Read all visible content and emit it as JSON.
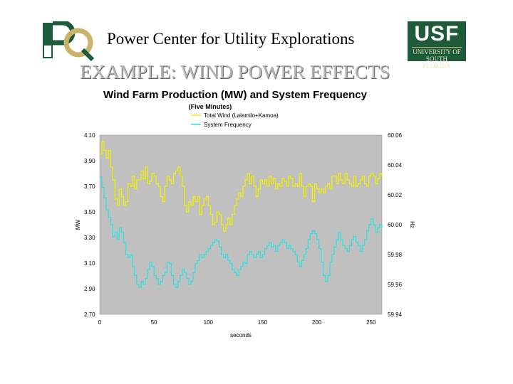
{
  "header": {
    "title": "Power Center for Utility Explorations",
    "logo_left": "PQ",
    "logo_right": "USF",
    "logo_right_sub": "UNIVERSITY OF SOUTH FLORIDA"
  },
  "slide": {
    "title": "EXAMPLE: WIND POWER EFFECTS"
  },
  "colors": {
    "wind": "#f0f000",
    "frequency": "#33e0e0",
    "plot_bg": "#c0c0c0",
    "usf_green": "#1e5b3a",
    "pq_green": "#1e5b3a"
  },
  "chart_data": {
    "type": "line",
    "title": "Wind Farm Production (MW) and System Frequency",
    "subtitle": "(Five Minutes)",
    "xlabel": "seconds",
    "ylabel": "MW",
    "y2label": "Hz",
    "xlim": [
      0,
      260
    ],
    "ylim": [
      2.7,
      4.1
    ],
    "y2lim": [
      59.94,
      60.06
    ],
    "x_ticks": [
      "0",
      "50",
      "100",
      "150",
      "200",
      "250"
    ],
    "y_ticks": [
      "4.10",
      "3.90",
      "3.70",
      "3.50",
      "3.30",
      "3.10",
      "2.90",
      "2.70"
    ],
    "y2_ticks": [
      "60.06",
      "60.04",
      "60.02",
      "60.00",
      "59.98",
      "59.96",
      "59.94"
    ],
    "legend_position": "top-center",
    "grid": false,
    "series": [
      {
        "name": "Total Wind (Lalamilo+Kamoa)",
        "axis": "left",
        "points": [
          [
            0,
            3.95
          ],
          [
            2,
            4.05
          ],
          [
            4,
            3.98
          ],
          [
            6,
            3.92
          ],
          [
            8,
            3.98
          ],
          [
            10,
            3.85
          ],
          [
            12,
            3.75
          ],
          [
            14,
            3.6
          ],
          [
            16,
            3.55
          ],
          [
            18,
            3.68
          ],
          [
            20,
            3.62
          ],
          [
            22,
            3.55
          ],
          [
            24,
            3.58
          ],
          [
            26,
            3.72
          ],
          [
            28,
            3.7
          ],
          [
            30,
            3.78
          ],
          [
            32,
            3.68
          ],
          [
            34,
            3.75
          ],
          [
            36,
            3.75
          ],
          [
            38,
            3.82
          ],
          [
            40,
            3.76
          ],
          [
            42,
            3.85
          ],
          [
            44,
            3.72
          ],
          [
            46,
            3.74
          ],
          [
            48,
            3.8
          ],
          [
            50,
            3.78
          ],
          [
            52,
            3.72
          ],
          [
            54,
            3.7
          ],
          [
            56,
            3.62
          ],
          [
            58,
            3.58
          ],
          [
            60,
            3.7
          ],
          [
            62,
            3.78
          ],
          [
            64,
            3.75
          ],
          [
            66,
            3.72
          ],
          [
            68,
            3.8
          ],
          [
            70,
            3.82
          ],
          [
            72,
            3.85
          ],
          [
            74,
            3.78
          ],
          [
            76,
            3.7
          ],
          [
            78,
            3.55
          ],
          [
            80,
            3.5
          ],
          [
            82,
            3.58
          ],
          [
            84,
            3.55
          ],
          [
            86,
            3.62
          ],
          [
            88,
            3.58
          ],
          [
            90,
            3.62
          ],
          [
            92,
            3.48
          ],
          [
            94,
            3.55
          ],
          [
            96,
            3.6
          ],
          [
            98,
            3.62
          ],
          [
            100,
            3.55
          ],
          [
            102,
            3.48
          ],
          [
            104,
            3.4
          ],
          [
            106,
            3.42
          ],
          [
            108,
            3.5
          ],
          [
            110,
            3.48
          ],
          [
            112,
            3.4
          ],
          [
            114,
            3.35
          ],
          [
            116,
            3.4
          ],
          [
            118,
            3.45
          ],
          [
            120,
            3.4
          ],
          [
            122,
            3.48
          ],
          [
            124,
            3.55
          ],
          [
            126,
            3.6
          ],
          [
            128,
            3.65
          ],
          [
            130,
            3.62
          ],
          [
            132,
            3.7
          ],
          [
            134,
            3.75
          ],
          [
            136,
            3.8
          ],
          [
            138,
            3.72
          ],
          [
            140,
            3.78
          ],
          [
            142,
            3.7
          ],
          [
            144,
            3.62
          ],
          [
            146,
            3.68
          ],
          [
            148,
            3.75
          ],
          [
            150,
            3.72
          ],
          [
            152,
            3.75
          ],
          [
            154,
            3.7
          ],
          [
            156,
            3.78
          ],
          [
            158,
            3.72
          ],
          [
            160,
            3.76
          ],
          [
            162,
            3.68
          ],
          [
            164,
            3.72
          ],
          [
            166,
            3.7
          ],
          [
            168,
            3.76
          ],
          [
            170,
            3.74
          ],
          [
            172,
            3.7
          ],
          [
            174,
            3.78
          ],
          [
            176,
            3.76
          ],
          [
            178,
            3.7
          ],
          [
            180,
            3.72
          ],
          [
            182,
            3.7
          ],
          [
            184,
            3.8
          ],
          [
            186,
            3.7
          ],
          [
            188,
            3.62
          ],
          [
            190,
            3.7
          ],
          [
            192,
            3.72
          ],
          [
            194,
            3.7
          ],
          [
            196,
            3.58
          ],
          [
            198,
            3.72
          ],
          [
            200,
            3.68
          ],
          [
            202,
            3.65
          ],
          [
            204,
            3.68
          ],
          [
            206,
            3.65
          ],
          [
            208,
            3.7
          ],
          [
            210,
            3.72
          ],
          [
            212,
            3.68
          ],
          [
            214,
            3.78
          ],
          [
            216,
            3.78
          ],
          [
            218,
            3.72
          ],
          [
            220,
            3.8
          ],
          [
            222,
            3.75
          ],
          [
            224,
            3.72
          ],
          [
            226,
            3.8
          ],
          [
            228,
            3.75
          ],
          [
            230,
            3.72
          ],
          [
            232,
            3.7
          ],
          [
            234,
            3.78
          ],
          [
            236,
            3.7
          ],
          [
            238,
            3.72
          ],
          [
            240,
            3.75
          ],
          [
            242,
            3.78
          ],
          [
            244,
            3.72
          ],
          [
            246,
            3.7
          ],
          [
            248,
            3.78
          ],
          [
            250,
            3.8
          ],
          [
            252,
            3.78
          ],
          [
            254,
            3.72
          ],
          [
            256,
            3.76
          ],
          [
            258,
            3.8
          ],
          [
            260,
            3.78
          ]
        ]
      },
      {
        "name": "System Frequency",
        "axis": "right",
        "points": [
          [
            0,
            60.032
          ],
          [
            2,
            60.025
          ],
          [
            4,
            60.018
          ],
          [
            6,
            60.01
          ],
          [
            8,
            60.005
          ],
          [
            10,
            60.0
          ],
          [
            12,
            59.992
          ],
          [
            14,
            59.995
          ],
          [
            16,
            59.99
          ],
          [
            18,
            59.998
          ],
          [
            20,
            59.995
          ],
          [
            22,
            59.988
          ],
          [
            24,
            59.98
          ],
          [
            26,
            59.978
          ],
          [
            28,
            59.98
          ],
          [
            30,
            59.972
          ],
          [
            32,
            59.966
          ],
          [
            34,
            59.96
          ],
          [
            36,
            59.958
          ],
          [
            38,
            59.962
          ],
          [
            40,
            59.96
          ],
          [
            42,
            59.964
          ],
          [
            44,
            59.97
          ],
          [
            46,
            59.975
          ],
          [
            48,
            59.972
          ],
          [
            50,
            59.966
          ],
          [
            52,
            59.964
          ],
          [
            54,
            59.96
          ],
          [
            56,
            59.962
          ],
          [
            58,
            59.966
          ],
          [
            60,
            59.968
          ],
          [
            62,
            59.975
          ],
          [
            64,
            59.974
          ],
          [
            66,
            59.966
          ],
          [
            68,
            59.96
          ],
          [
            70,
            59.958
          ],
          [
            72,
            59.962
          ],
          [
            74,
            59.966
          ],
          [
            76,
            59.97
          ],
          [
            78,
            59.968
          ],
          [
            80,
            59.964
          ],
          [
            82,
            59.96
          ],
          [
            84,
            59.962
          ],
          [
            86,
            59.968
          ],
          [
            88,
            59.974
          ],
          [
            90,
            59.976
          ],
          [
            92,
            59.98
          ],
          [
            94,
            59.978
          ],
          [
            96,
            59.98
          ],
          [
            98,
            59.982
          ],
          [
            100,
            59.984
          ],
          [
            102,
            59.986
          ],
          [
            104,
            59.988
          ],
          [
            106,
            59.99
          ],
          [
            108,
            59.989
          ],
          [
            110,
            59.985
          ],
          [
            112,
            59.98
          ],
          [
            114,
            59.978
          ],
          [
            116,
            59.98
          ],
          [
            118,
            59.976
          ],
          [
            120,
            59.974
          ],
          [
            122,
            59.97
          ],
          [
            124,
            59.968
          ],
          [
            126,
            59.966
          ],
          [
            128,
            59.97
          ],
          [
            130,
            59.972
          ],
          [
            132,
            59.975
          ],
          [
            134,
            59.974
          ],
          [
            136,
            59.98
          ],
          [
            138,
            59.982
          ],
          [
            140,
            59.98
          ],
          [
            142,
            59.978
          ],
          [
            144,
            59.98
          ],
          [
            146,
            59.982
          ],
          [
            148,
            59.978
          ],
          [
            150,
            59.98
          ],
          [
            152,
            59.984
          ],
          [
            154,
            59.986
          ],
          [
            156,
            59.988
          ],
          [
            158,
            59.985
          ],
          [
            160,
            59.986
          ],
          [
            162,
            59.982
          ],
          [
            164,
            59.986
          ],
          [
            166,
            59.988
          ],
          [
            168,
            59.99
          ],
          [
            170,
            59.988
          ],
          [
            172,
            59.984
          ],
          [
            174,
            59.986
          ],
          [
            176,
            59.984
          ],
          [
            178,
            59.982
          ],
          [
            180,
            59.98
          ],
          [
            182,
            59.975
          ],
          [
            184,
            59.972
          ],
          [
            186,
            59.976
          ],
          [
            188,
            59.98
          ],
          [
            190,
            59.984
          ],
          [
            192,
            59.99
          ],
          [
            194,
            59.994
          ],
          [
            196,
            59.996
          ],
          [
            198,
            59.994
          ],
          [
            200,
            59.99
          ],
          [
            202,
            59.984
          ],
          [
            204,
            59.975
          ],
          [
            206,
            59.966
          ],
          [
            208,
            59.962
          ],
          [
            210,
            59.966
          ],
          [
            212,
            59.975
          ],
          [
            214,
            59.98
          ],
          [
            216,
            59.985
          ],
          [
            218,
            59.99
          ],
          [
            220,
            59.995
          ],
          [
            222,
            59.99
          ],
          [
            224,
            59.986
          ],
          [
            226,
            59.984
          ],
          [
            228,
            59.982
          ],
          [
            230,
            59.986
          ],
          [
            232,
            59.99
          ],
          [
            234,
            59.992
          ],
          [
            236,
            59.988
          ],
          [
            238,
            59.986
          ],
          [
            240,
            59.982
          ],
          [
            242,
            59.986
          ],
          [
            244,
            59.99
          ],
          [
            246,
            59.996
          ],
          [
            248,
            60.0
          ],
          [
            250,
            60.004
          ],
          [
            252,
            60.0
          ],
          [
            254,
            59.995
          ],
          [
            256,
            59.998
          ],
          [
            258,
            60.0
          ],
          [
            260,
            59.998
          ]
        ]
      }
    ]
  }
}
